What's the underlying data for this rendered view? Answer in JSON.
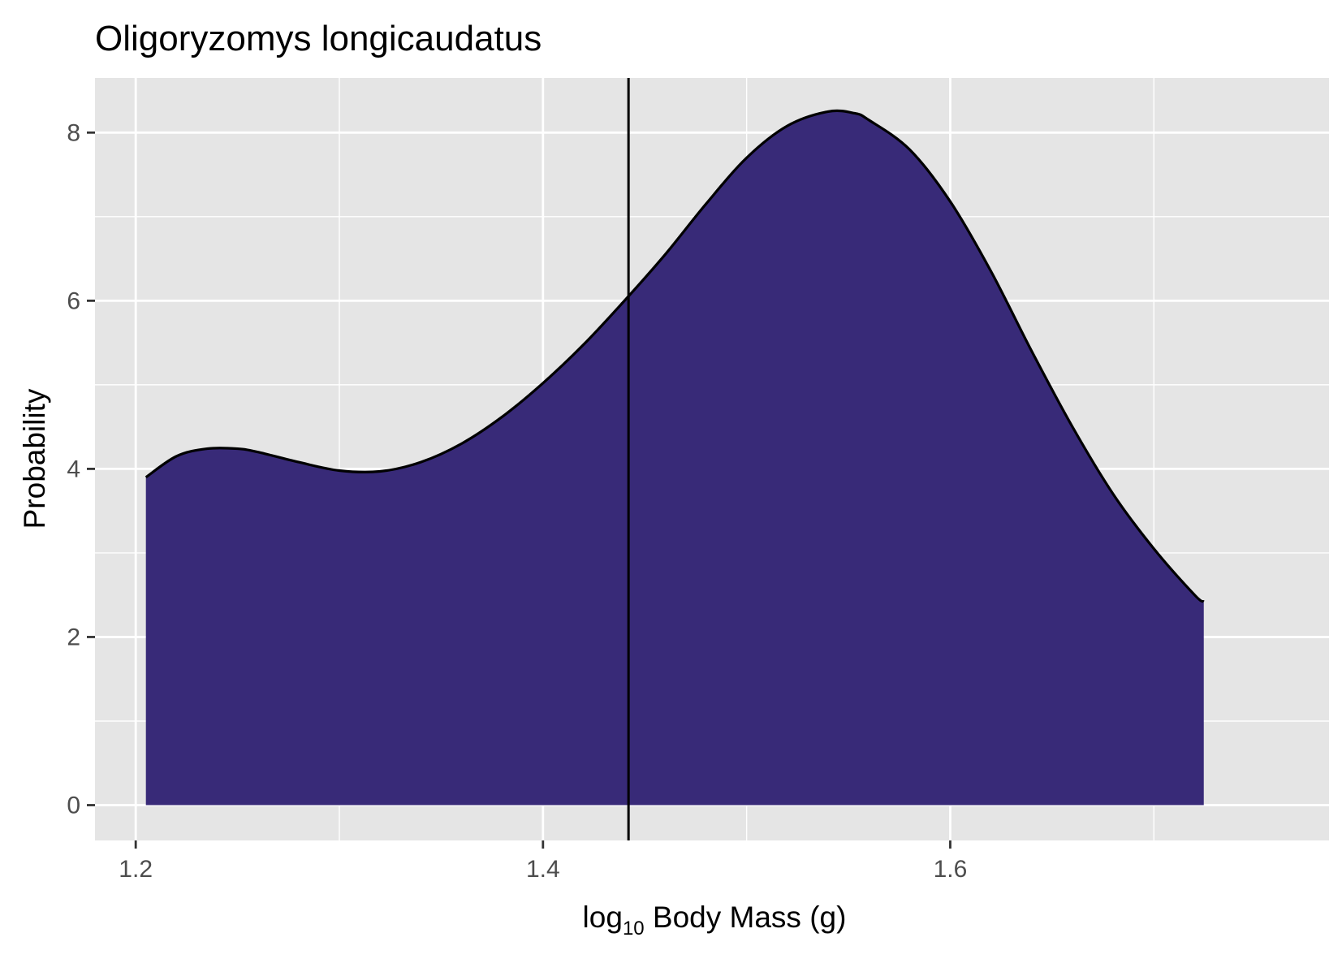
{
  "chart_data": {
    "type": "area",
    "title": "Oligoryzomys longicaudatus",
    "xlabel_prefix": "log",
    "xlabel_sub": "10",
    "xlabel_suffix": " Body Mass (g)",
    "ylabel": "Probability",
    "xlim": [
      1.18,
      1.786
    ],
    "ylim": [
      -0.42,
      8.65
    ],
    "x_ticks": [
      1.2,
      1.4,
      1.6
    ],
    "x_tick_labels": [
      "1.2",
      "1.4",
      "1.6"
    ],
    "x_minor_ticks": [
      1.3,
      1.5,
      1.7
    ],
    "y_ticks": [
      0,
      2,
      4,
      6,
      8
    ],
    "y_tick_labels": [
      "0",
      "2",
      "4",
      "6",
      "8"
    ],
    "y_minor_ticks": [
      1,
      3,
      5,
      7
    ],
    "grid": true,
    "fill_color": "#382a78",
    "line_color": "#000000",
    "panel_color": "#e5e5e5",
    "vline_x": 1.442,
    "series": [
      {
        "x": [
          1.205,
          1.22,
          1.235,
          1.25,
          1.26,
          1.28,
          1.3,
          1.32,
          1.34,
          1.36,
          1.38,
          1.4,
          1.42,
          1.44,
          1.46,
          1.48,
          1.5,
          1.52,
          1.54,
          1.553,
          1.56,
          1.58,
          1.6,
          1.62,
          1.64,
          1.66,
          1.68,
          1.7,
          1.72,
          1.7245
        ],
        "y": [
          3.9,
          4.15,
          4.24,
          4.24,
          4.2,
          4.08,
          3.98,
          3.97,
          4.08,
          4.3,
          4.62,
          5.02,
          5.48,
          6.0,
          6.55,
          7.15,
          7.7,
          8.08,
          8.25,
          8.23,
          8.15,
          7.8,
          7.18,
          6.35,
          5.4,
          4.5,
          3.7,
          3.05,
          2.5,
          2.42
        ]
      }
    ]
  }
}
